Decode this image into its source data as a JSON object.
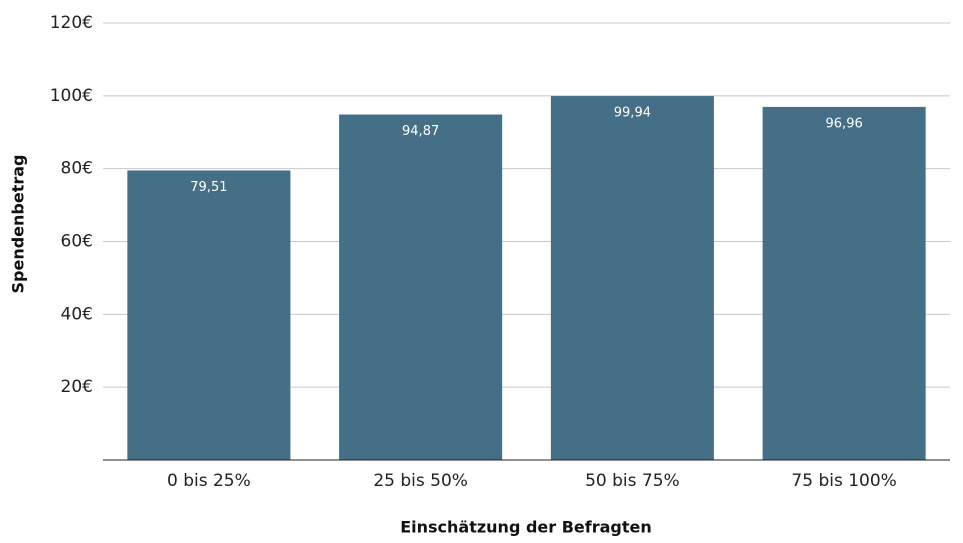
{
  "chart_data": {
    "type": "bar",
    "x_label": "Einschätzung der Befragten",
    "y_label": "Spendenbetrag",
    "categories": [
      "0 bis 25%",
      "25 bis 50%",
      "50 bis 75%",
      "75 bis 100%"
    ],
    "values": [
      79.51,
      94.87,
      99.94,
      96.96
    ],
    "value_labels": [
      "79,51",
      "94,87",
      "99,94",
      "96,96"
    ],
    "color": "#456f87",
    "ylim": [
      0,
      120
    ],
    "yticks": [
      {
        "value": 20,
        "label": "20€"
      },
      {
        "value": 40,
        "label": "40€"
      },
      {
        "value": 60,
        "label": "60€"
      },
      {
        "value": 80,
        "label": "80€"
      },
      {
        "value": 100,
        "label": "100€"
      },
      {
        "value": 120,
        "label": "120€"
      }
    ],
    "grid": true
  }
}
